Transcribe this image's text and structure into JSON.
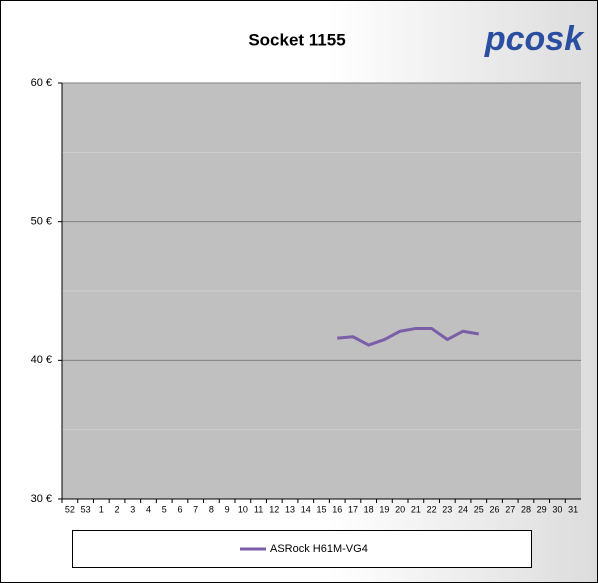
{
  "chart_data": {
    "type": "line",
    "title": "Socket 1155",
    "logo": "pcosk",
    "categories": [
      "52",
      "53",
      "1",
      "2",
      "3",
      "4",
      "5",
      "6",
      "7",
      "8",
      "9",
      "10",
      "11",
      "12",
      "13",
      "14",
      "15",
      "16",
      "17",
      "18",
      "19",
      "20",
      "21",
      "22",
      "23",
      "24",
      "25",
      "26",
      "27",
      "28",
      "29",
      "30",
      "31"
    ],
    "series": [
      {
        "name": "ASRock H61M-VG4",
        "color": "#7b5ea8",
        "values": [
          null,
          null,
          null,
          null,
          null,
          null,
          null,
          null,
          null,
          null,
          null,
          null,
          null,
          null,
          null,
          null,
          null,
          41.6,
          41.7,
          41.1,
          41.5,
          42.1,
          42.3,
          42.3,
          41.5,
          42.1,
          41.9,
          null,
          null,
          null,
          null,
          null,
          null
        ]
      }
    ],
    "ylim": [
      30,
      60
    ],
    "yticks": [
      {
        "value": 30,
        "label": "30 €"
      },
      {
        "value": 40,
        "label": "40 €"
      },
      {
        "value": 50,
        "label": "50 €"
      },
      {
        "value": 60,
        "label": "60 €"
      }
    ],
    "minor_yticks": [
      35,
      45,
      55
    ],
    "grid": true,
    "legend": "bottom"
  }
}
